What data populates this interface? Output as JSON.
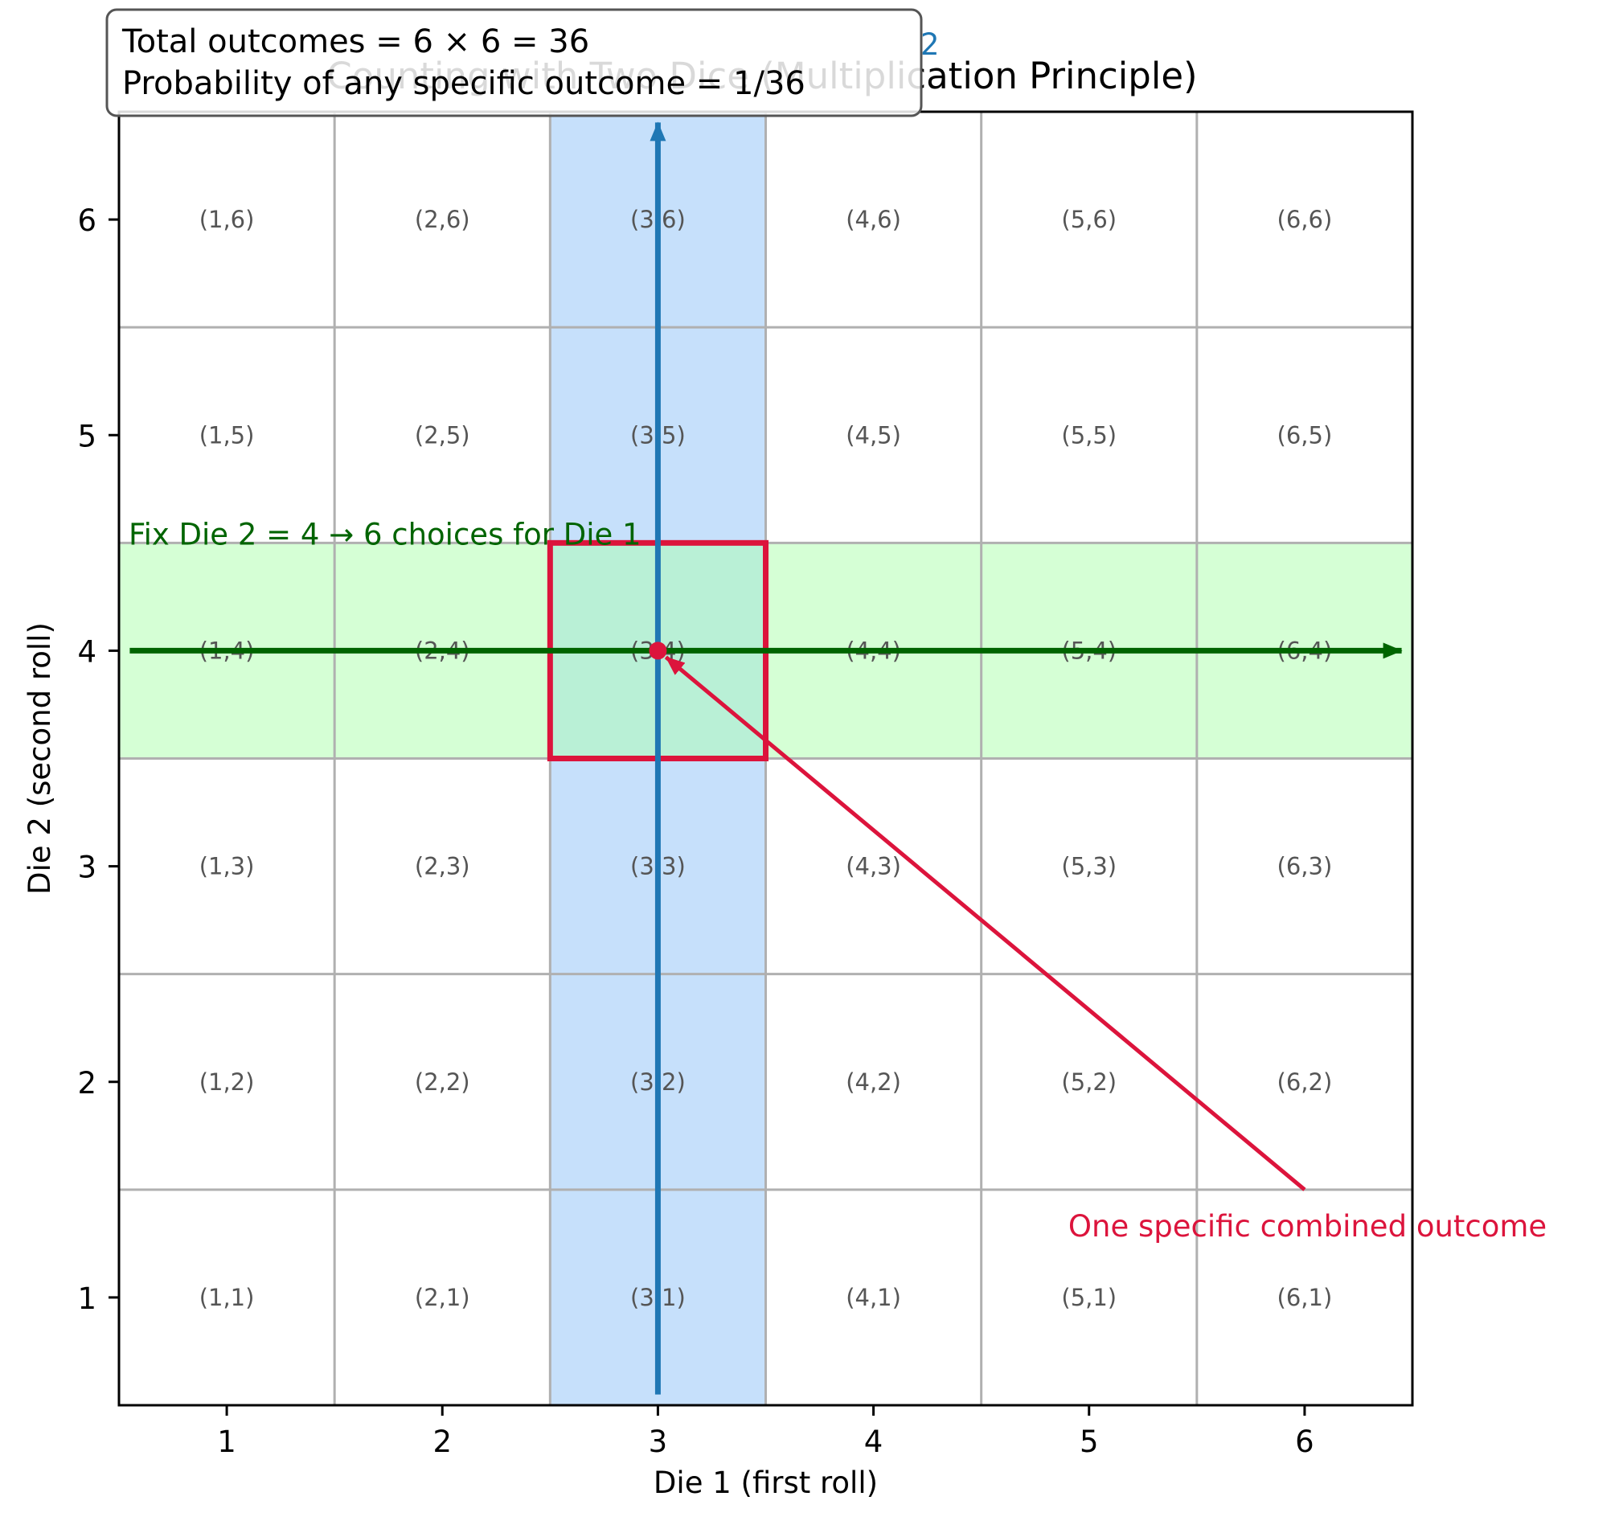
{
  "chart_data": {
    "type": "heatmap",
    "title": "Counting with Two Dice (Multiplication Principle)",
    "xlabel": "Die 1 (first roll)",
    "ylabel": "Die 2 (second roll)",
    "xlim": [
      0.5,
      6.5
    ],
    "ylim": [
      0.5,
      6.5
    ],
    "xticks": [
      1,
      2,
      3,
      4,
      5,
      6
    ],
    "yticks": [
      1,
      2,
      3,
      4,
      5,
      6
    ],
    "grid": true,
    "cells": [
      {
        "x": 1,
        "y": 1,
        "label": "(1,1)"
      },
      {
        "x": 2,
        "y": 1,
        "label": "(2,1)"
      },
      {
        "x": 3,
        "y": 1,
        "label": "(3,1)"
      },
      {
        "x": 4,
        "y": 1,
        "label": "(4,1)"
      },
      {
        "x": 5,
        "y": 1,
        "label": "(5,1)"
      },
      {
        "x": 6,
        "y": 1,
        "label": "(6,1)"
      },
      {
        "x": 1,
        "y": 2,
        "label": "(1,2)"
      },
      {
        "x": 2,
        "y": 2,
        "label": "(2,2)"
      },
      {
        "x": 3,
        "y": 2,
        "label": "(3,2)"
      },
      {
        "x": 4,
        "y": 2,
        "label": "(4,2)"
      },
      {
        "x": 5,
        "y": 2,
        "label": "(5,2)"
      },
      {
        "x": 6,
        "y": 2,
        "label": "(6,2)"
      },
      {
        "x": 1,
        "y": 3,
        "label": "(1,3)"
      },
      {
        "x": 2,
        "y": 3,
        "label": "(2,3)"
      },
      {
        "x": 3,
        "y": 3,
        "label": "(3,3)"
      },
      {
        "x": 4,
        "y": 3,
        "label": "(4,3)"
      },
      {
        "x": 5,
        "y": 3,
        "label": "(5,3)"
      },
      {
        "x": 6,
        "y": 3,
        "label": "(6,3)"
      },
      {
        "x": 1,
        "y": 4,
        "label": "(1,4)"
      },
      {
        "x": 2,
        "y": 4,
        "label": "(2,4)"
      },
      {
        "x": 3,
        "y": 4,
        "label": "(3,4)"
      },
      {
        "x": 4,
        "y": 4,
        "label": "(4,4)"
      },
      {
        "x": 5,
        "y": 4,
        "label": "(5,4)"
      },
      {
        "x": 6,
        "y": 4,
        "label": "(6,4)"
      },
      {
        "x": 1,
        "y": 5,
        "label": "(1,5)"
      },
      {
        "x": 2,
        "y": 5,
        "label": "(2,5)"
      },
      {
        "x": 3,
        "y": 5,
        "label": "(3,5)"
      },
      {
        "x": 4,
        "y": 5,
        "label": "(4,5)"
      },
      {
        "x": 5,
        "y": 5,
        "label": "(5,5)"
      },
      {
        "x": 6,
        "y": 5,
        "label": "(6,5)"
      },
      {
        "x": 1,
        "y": 6,
        "label": "(1,6)"
      },
      {
        "x": 2,
        "y": 6,
        "label": "(2,6)"
      },
      {
        "x": 3,
        "y": 6,
        "label": "(3,6)"
      },
      {
        "x": 4,
        "y": 6,
        "label": "(4,6)"
      },
      {
        "x": 5,
        "y": 6,
        "label": "(5,6)"
      },
      {
        "x": 6,
        "y": 6,
        "label": "(6,6)"
      }
    ],
    "highlights": {
      "column": {
        "x": 3,
        "color": "#c6e0fb"
      },
      "row": {
        "y": 4,
        "color": "#d5ffd5"
      },
      "selected_cell": {
        "x": 3,
        "y": 4,
        "edge_color": "#dc143c"
      }
    },
    "arrows": {
      "vertical": {
        "x": 3,
        "from_y": 0.55,
        "to_y": 6.45,
        "color": "#1f77b4"
      },
      "horizontal": {
        "y": 4,
        "from_x": 0.55,
        "to_x": 6.45,
        "color": "#006400"
      },
      "pointer": {
        "from": [
          6,
          1.5
        ],
        "to": [
          3,
          4
        ],
        "color": "#dc143c"
      }
    },
    "marker": {
      "x": 3,
      "y": 4,
      "color": "#dc143c"
    },
    "annotations": {
      "green_text": "Fix Die 2 = 4 → 6 choices for Die 1",
      "green_color": "#006400",
      "red_text": "One specific combined outcome",
      "red_color": "#dc143c",
      "blue_fragment": "2",
      "blue_color": "#1f77b4"
    },
    "info_box": {
      "line1": "Total outcomes = 6 × 6 = 36",
      "line2": "Probability of any specific outcome = 1/36"
    }
  }
}
